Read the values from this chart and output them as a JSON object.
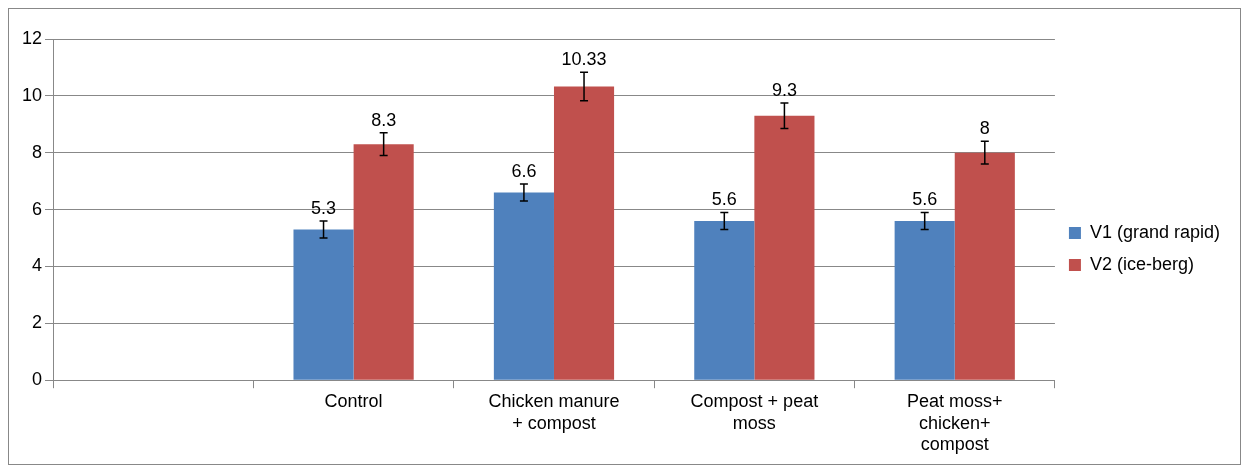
{
  "chart_data": {
    "type": "bar",
    "categories": [
      null,
      "Control",
      "Chicken manure + compost",
      "Compost + peat moss",
      "Peat moss+ chicken+ compost"
    ],
    "series": [
      {
        "name": "V1 (grand rapid)",
        "color": "#4f81bd",
        "values": [
          null,
          5.3,
          6.6,
          5.6,
          5.6
        ],
        "errors": [
          null,
          0.3,
          0.3,
          0.3,
          0.3
        ]
      },
      {
        "name": "V2 (ice-berg)",
        "color": "#c0504d",
        "values": [
          null,
          8.3,
          10.33,
          9.3,
          8
        ],
        "errors": [
          null,
          0.4,
          0.5,
          0.45,
          0.4
        ]
      }
    ],
    "ylim": [
      0,
      12
    ],
    "yticks": [
      0,
      2,
      4,
      6,
      8,
      10,
      12
    ],
    "grid": "y",
    "legend": "right",
    "data_labels": true
  }
}
